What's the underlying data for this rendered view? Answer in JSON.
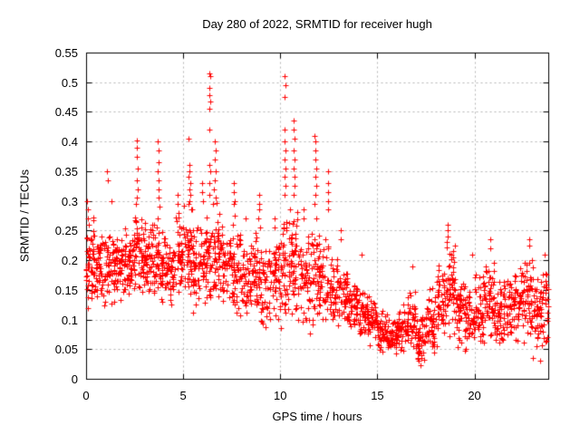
{
  "chart_data": {
    "type": "scatter",
    "title": "Day 280 of 2022, SRMTID for receiver hugh",
    "xlabel": "GPS time / hours",
    "ylabel": "SRMTID / TECUs",
    "xlim": [
      0,
      23.8
    ],
    "ylim": [
      0,
      0.55
    ],
    "grid": true,
    "legend": "none",
    "marker": "plus",
    "marker_color": "#ff0000",
    "grid_color": "#b4b4b4",
    "axis_color": "#000000",
    "background_color": "#ffffff",
    "xticks": [
      {
        "v": 0,
        "label": "0"
      },
      {
        "v": 5,
        "label": "5"
      },
      {
        "v": 10,
        "label": "10"
      },
      {
        "v": 15,
        "label": "15"
      },
      {
        "v": 20,
        "label": "20"
      }
    ],
    "yticks": [
      {
        "v": 0,
        "label": "0"
      },
      {
        "v": 0.05,
        "label": "0.05"
      },
      {
        "v": 0.1,
        "label": "0.1"
      },
      {
        "v": 0.15,
        "label": "0.15"
      },
      {
        "v": 0.2,
        "label": "0.2"
      },
      {
        "v": 0.25,
        "label": "0.25"
      },
      {
        "v": 0.3,
        "label": "0.3"
      },
      {
        "v": 0.35,
        "label": "0.35"
      },
      {
        "v": 0.4,
        "label": "0.4"
      },
      {
        "v": 0.45,
        "label": "0.45"
      },
      {
        "v": 0.5,
        "label": "0.5"
      },
      {
        "v": 0.55,
        "label": "0.55"
      }
    ],
    "seed": 280,
    "band_bins": [
      [
        0.0,
        0.5,
        55,
        0.11,
        0.28
      ],
      [
        0.5,
        1.0,
        50,
        0.12,
        0.25
      ],
      [
        1.0,
        1.5,
        50,
        0.12,
        0.26
      ],
      [
        1.5,
        2.0,
        50,
        0.13,
        0.24
      ],
      [
        2.0,
        2.5,
        50,
        0.13,
        0.26
      ],
      [
        2.5,
        3.0,
        55,
        0.13,
        0.29
      ],
      [
        3.0,
        3.5,
        50,
        0.13,
        0.28
      ],
      [
        3.5,
        4.0,
        50,
        0.12,
        0.27
      ],
      [
        4.0,
        4.5,
        45,
        0.12,
        0.25
      ],
      [
        4.5,
        5.0,
        45,
        0.13,
        0.28
      ],
      [
        5.0,
        5.5,
        50,
        0.12,
        0.3
      ],
      [
        5.5,
        6.0,
        45,
        0.1,
        0.27
      ],
      [
        6.0,
        6.5,
        50,
        0.11,
        0.28
      ],
      [
        6.5,
        7.0,
        50,
        0.12,
        0.3
      ],
      [
        7.0,
        7.5,
        45,
        0.12,
        0.26
      ],
      [
        7.5,
        8.0,
        50,
        0.1,
        0.28
      ],
      [
        8.0,
        8.5,
        45,
        0.1,
        0.24
      ],
      [
        8.5,
        9.0,
        45,
        0.1,
        0.26
      ],
      [
        9.0,
        9.5,
        45,
        0.07,
        0.24
      ],
      [
        9.5,
        10.0,
        45,
        0.08,
        0.26
      ],
      [
        10.0,
        10.5,
        50,
        0.08,
        0.3
      ],
      [
        10.5,
        11.0,
        50,
        0.07,
        0.3
      ],
      [
        11.0,
        11.5,
        45,
        0.08,
        0.26
      ],
      [
        11.5,
        12.0,
        50,
        0.07,
        0.28
      ],
      [
        12.0,
        12.5,
        45,
        0.07,
        0.26
      ],
      [
        12.5,
        13.0,
        45,
        0.07,
        0.22
      ],
      [
        13.0,
        13.5,
        45,
        0.08,
        0.2
      ],
      [
        13.5,
        14.0,
        45,
        0.07,
        0.18
      ],
      [
        14.0,
        14.5,
        45,
        0.06,
        0.16
      ],
      [
        14.5,
        15.0,
        45,
        0.05,
        0.14
      ],
      [
        15.0,
        15.5,
        45,
        0.04,
        0.12
      ],
      [
        15.5,
        16.0,
        50,
        0.03,
        0.11
      ],
      [
        16.0,
        16.5,
        45,
        0.04,
        0.13
      ],
      [
        16.5,
        17.0,
        45,
        0.04,
        0.15
      ],
      [
        17.0,
        17.5,
        45,
        0.02,
        0.13
      ],
      [
        17.5,
        18.0,
        45,
        0.03,
        0.16
      ],
      [
        18.0,
        18.5,
        50,
        0.05,
        0.2
      ],
      [
        18.5,
        19.0,
        50,
        0.06,
        0.24
      ],
      [
        19.0,
        19.5,
        45,
        0.05,
        0.18
      ],
      [
        19.5,
        20.0,
        45,
        0.04,
        0.16
      ],
      [
        20.0,
        20.5,
        45,
        0.05,
        0.18
      ],
      [
        20.5,
        21.0,
        50,
        0.06,
        0.21
      ],
      [
        21.0,
        21.5,
        45,
        0.05,
        0.17
      ],
      [
        21.5,
        22.0,
        45,
        0.06,
        0.19
      ],
      [
        22.0,
        22.5,
        50,
        0.06,
        0.21
      ],
      [
        22.5,
        23.0,
        50,
        0.05,
        0.22
      ],
      [
        23.0,
        23.5,
        45,
        0.04,
        0.19
      ],
      [
        23.5,
        23.8,
        25,
        0.04,
        0.22
      ]
    ],
    "spike_points": [
      [
        0.05,
        0.3
      ],
      [
        0.08,
        0.285
      ],
      [
        0.1,
        0.27
      ],
      [
        0.12,
        0.26
      ],
      [
        1.05,
        0.35
      ],
      [
        1.1,
        0.335
      ],
      [
        1.3,
        0.3
      ],
      [
        2.6,
        0.402
      ],
      [
        2.62,
        0.39
      ],
      [
        2.63,
        0.375
      ],
      [
        2.65,
        0.355
      ],
      [
        2.6,
        0.335
      ],
      [
        2.66,
        0.32
      ],
      [
        2.62,
        0.305
      ],
      [
        2.55,
        0.295
      ],
      [
        3.7,
        0.4
      ],
      [
        3.72,
        0.385
      ],
      [
        3.74,
        0.365
      ],
      [
        3.7,
        0.35
      ],
      [
        3.73,
        0.335
      ],
      [
        3.75,
        0.32
      ],
      [
        3.71,
        0.305
      ],
      [
        3.76,
        0.29
      ],
      [
        3.68,
        0.27
      ],
      [
        4.7,
        0.31
      ],
      [
        4.72,
        0.295
      ],
      [
        4.75,
        0.28
      ],
      [
        5.25,
        0.405
      ],
      [
        5.3,
        0.36
      ],
      [
        5.32,
        0.35
      ],
      [
        5.28,
        0.34
      ],
      [
        5.35,
        0.33
      ],
      [
        5.3,
        0.32
      ],
      [
        5.37,
        0.31
      ],
      [
        5.33,
        0.3
      ],
      [
        5.27,
        0.295
      ],
      [
        5.4,
        0.285
      ],
      [
        5.95,
        0.33
      ],
      [
        5.97,
        0.315
      ],
      [
        6.0,
        0.3
      ],
      [
        6.35,
        0.515
      ],
      [
        6.38,
        0.51
      ],
      [
        6.36,
        0.49
      ],
      [
        6.35,
        0.478
      ],
      [
        6.37,
        0.467
      ],
      [
        6.36,
        0.455
      ],
      [
        6.35,
        0.42
      ],
      [
        6.34,
        0.36
      ],
      [
        6.37,
        0.35
      ],
      [
        6.36,
        0.33
      ],
      [
        6.33,
        0.31
      ],
      [
        6.62,
        0.4
      ],
      [
        6.65,
        0.385
      ],
      [
        6.63,
        0.37
      ],
      [
        6.66,
        0.35
      ],
      [
        6.64,
        0.335
      ],
      [
        6.6,
        0.32
      ],
      [
        6.67,
        0.305
      ],
      [
        7.6,
        0.33
      ],
      [
        7.62,
        0.315
      ],
      [
        7.63,
        0.3
      ],
      [
        7.61,
        0.295
      ],
      [
        7.65,
        0.275
      ],
      [
        7.58,
        0.26
      ],
      [
        8.2,
        0.27
      ],
      [
        8.9,
        0.31
      ],
      [
        8.92,
        0.295
      ],
      [
        8.93,
        0.285
      ],
      [
        8.88,
        0.27
      ],
      [
        8.95,
        0.255
      ],
      [
        9.7,
        0.27
      ],
      [
        9.72,
        0.255
      ],
      [
        10.22,
        0.51
      ],
      [
        10.25,
        0.495
      ],
      [
        10.23,
        0.475
      ],
      [
        10.2,
        0.42
      ],
      [
        10.24,
        0.4
      ],
      [
        10.26,
        0.385
      ],
      [
        10.22,
        0.37
      ],
      [
        10.27,
        0.355
      ],
      [
        10.23,
        0.34
      ],
      [
        10.25,
        0.325
      ],
      [
        10.21,
        0.31
      ],
      [
        10.68,
        0.435
      ],
      [
        10.7,
        0.42
      ],
      [
        10.72,
        0.405
      ],
      [
        10.69,
        0.385
      ],
      [
        10.73,
        0.37
      ],
      [
        10.7,
        0.355
      ],
      [
        10.74,
        0.34
      ],
      [
        10.71,
        0.325
      ],
      [
        10.67,
        0.31
      ],
      [
        11.2,
        0.285
      ],
      [
        11.22,
        0.27
      ],
      [
        11.78,
        0.41
      ],
      [
        11.8,
        0.4
      ],
      [
        11.82,
        0.385
      ],
      [
        11.79,
        0.37
      ],
      [
        11.83,
        0.355
      ],
      [
        11.8,
        0.34
      ],
      [
        11.84,
        0.325
      ],
      [
        11.81,
        0.31
      ],
      [
        11.77,
        0.295
      ],
      [
        12.45,
        0.35
      ],
      [
        12.47,
        0.33
      ],
      [
        12.44,
        0.315
      ],
      [
        12.48,
        0.3
      ],
      [
        12.46,
        0.285
      ],
      [
        13.1,
        0.25
      ],
      [
        13.12,
        0.235
      ],
      [
        14.2,
        0.21
      ],
      [
        16.8,
        0.19
      ],
      [
        17.2,
        0.023
      ],
      [
        17.25,
        0.035
      ],
      [
        18.6,
        0.26
      ],
      [
        18.62,
        0.25
      ],
      [
        18.64,
        0.24
      ],
      [
        18.58,
        0.23
      ],
      [
        19.9,
        0.21
      ],
      [
        20.8,
        0.235
      ],
      [
        20.82,
        0.22
      ],
      [
        22.8,
        0.235
      ],
      [
        22.82,
        0.225
      ],
      [
        23.0,
        0.035
      ],
      [
        23.4,
        0.03
      ],
      [
        23.6,
        0.21
      ]
    ]
  }
}
